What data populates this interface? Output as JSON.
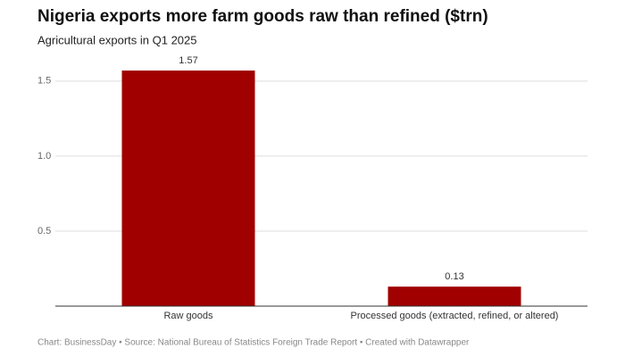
{
  "chart_data": {
    "type": "bar",
    "title": "Nigeria exports more farm goods raw than refined ($trn)",
    "subtitle": "Agricultural exports in Q1 2025",
    "categories": [
      "Raw goods",
      "Processed goods (extracted, refined, or altered)"
    ],
    "values": [
      1.57,
      0.13
    ],
    "color": "#a00000",
    "ylim": [
      0,
      1.6
    ],
    "yticks": [
      0.5,
      {
        "value": 1,
        "label": "1.0"
      },
      1.5
    ],
    "grid": true,
    "source": "Chart: BusinessDay • Source: National Bureau of Statistics Foreign Trade Report • Created with Datawrapper"
  }
}
